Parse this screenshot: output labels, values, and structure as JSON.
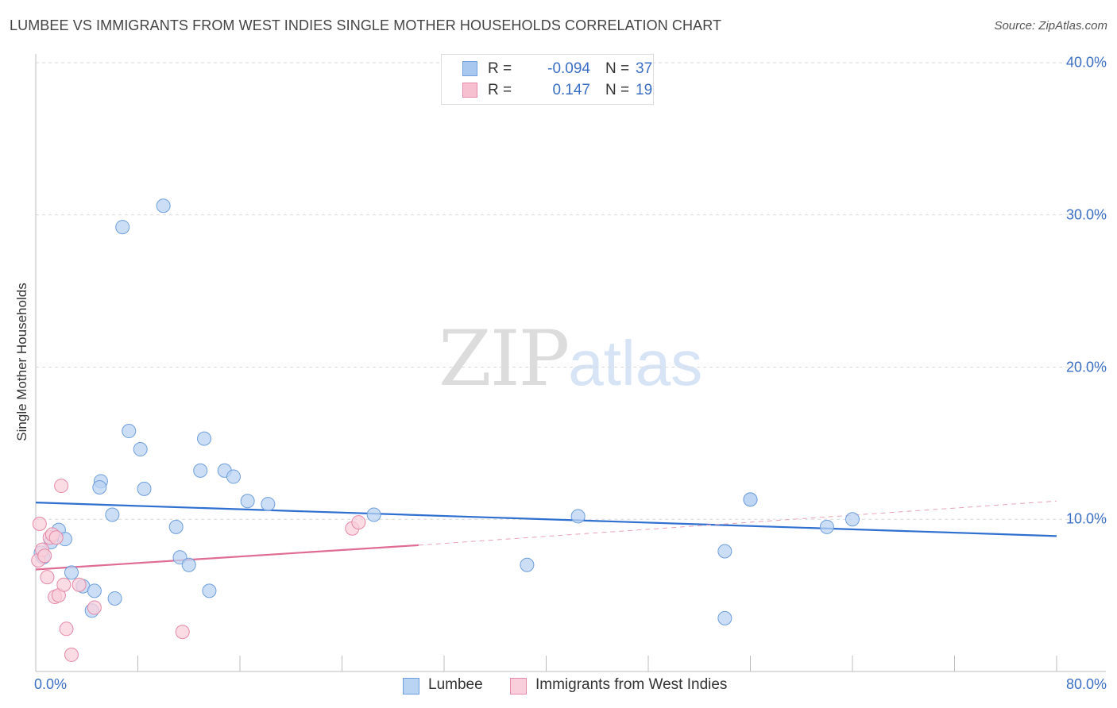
{
  "title": "LUMBEE VS IMMIGRANTS FROM WEST INDIES SINGLE MOTHER HOUSEHOLDS CORRELATION CHART",
  "source": "Source: ZipAtlas.com",
  "watermark": {
    "zip": "ZIP",
    "atlas": "atlas"
  },
  "stats": [
    {
      "r_label": "R =",
      "r_value": "-0.094",
      "n_label": "N =",
      "n_value": "37",
      "color": "#a9c8f0",
      "border": "#6f9fdc"
    },
    {
      "r_label": "R =",
      "r_value": "0.147",
      "n_label": "N =",
      "n_value": "19",
      "color": "#f7c0d0",
      "border": "#e58aa8"
    }
  ],
  "legend": [
    {
      "label": "Lumbee",
      "color": "#b9d3f3",
      "border": "#6f9fdc"
    },
    {
      "label": "Immigrants from West Indies",
      "color": "#f9cfdb",
      "border": "#e58aa8"
    }
  ],
  "chart_data": {
    "type": "scatter",
    "ylabel": "Single Mother Households",
    "xlim": [
      0,
      80
    ],
    "ylim": [
      0,
      40
    ],
    "y_ticks": [
      {
        "value": 10,
        "label": "10.0%"
      },
      {
        "value": 20,
        "label": "20.0%"
      },
      {
        "value": 30,
        "label": "30.0%"
      },
      {
        "value": 40,
        "label": "40.0%"
      }
    ],
    "x_tick_labels": [
      {
        "value": 0,
        "label": "0.0%"
      },
      {
        "value": 80,
        "label": "80.0%"
      }
    ],
    "x_minor_ticks": [
      0,
      8,
      16,
      24,
      32,
      40,
      48,
      56,
      64,
      72,
      80
    ],
    "grid": "horizontal-dashed",
    "legend_position": "bottom",
    "series": [
      {
        "name": "Lumbee",
        "color": "#6f9fdc",
        "fill": "#b9d3f3",
        "x": [
          0.4,
          0.6,
          1.2,
          1.8,
          2.3,
          2.8,
          3.7,
          4.4,
          4.6,
          5.1,
          6.0,
          6.2,
          6.8,
          7.3,
          8.2,
          8.5,
          10.0,
          11.0,
          11.3,
          12.0,
          12.9,
          13.2,
          13.6,
          14.8,
          15.5,
          16.6,
          18.2,
          26.5,
          38.5,
          42.5,
          54.0,
          56.0,
          54.0,
          56.0,
          62.0,
          64.0,
          5.0
        ],
        "y": [
          7.8,
          7.5,
          8.5,
          9.3,
          8.7,
          6.5,
          5.6,
          4.0,
          5.3,
          12.5,
          10.3,
          4.8,
          29.2,
          15.8,
          14.6,
          12.0,
          30.6,
          9.5,
          7.5,
          7.0,
          13.2,
          15.3,
          5.3,
          13.2,
          12.8,
          11.2,
          11.0,
          10.3,
          7.0,
          10.2,
          7.9,
          11.3,
          3.5,
          11.3,
          9.5,
          10.0,
          12.1
        ]
      },
      {
        "name": "Immigrants from West Indies",
        "color": "#e58aa8",
        "fill": "#f9cfdb",
        "x": [
          0.2,
          0.3,
          0.5,
          0.7,
          0.9,
          1.1,
          1.3,
          1.5,
          1.6,
          1.8,
          2.0,
          2.2,
          2.4,
          2.8,
          3.4,
          4.6,
          11.5,
          24.8,
          25.3
        ],
        "y": [
          7.3,
          9.7,
          8.0,
          7.6,
          6.2,
          8.8,
          9.0,
          4.9,
          8.8,
          5.0,
          12.2,
          5.7,
          2.8,
          1.1,
          5.7,
          4.2,
          2.6,
          9.4,
          9.8
        ]
      }
    ],
    "trendlines": [
      {
        "series": "Lumbee",
        "x": [
          0,
          80
        ],
        "y": [
          11.1,
          8.9
        ],
        "style": "solid"
      },
      {
        "series": "Immigrants from West Indies",
        "x": [
          0,
          30
        ],
        "y": [
          6.7,
          8.3
        ],
        "style": "solid"
      },
      {
        "series": "Immigrants from West Indies",
        "x": [
          30,
          80
        ],
        "y": [
          8.3,
          11.2
        ],
        "style": "dashed"
      }
    ]
  }
}
